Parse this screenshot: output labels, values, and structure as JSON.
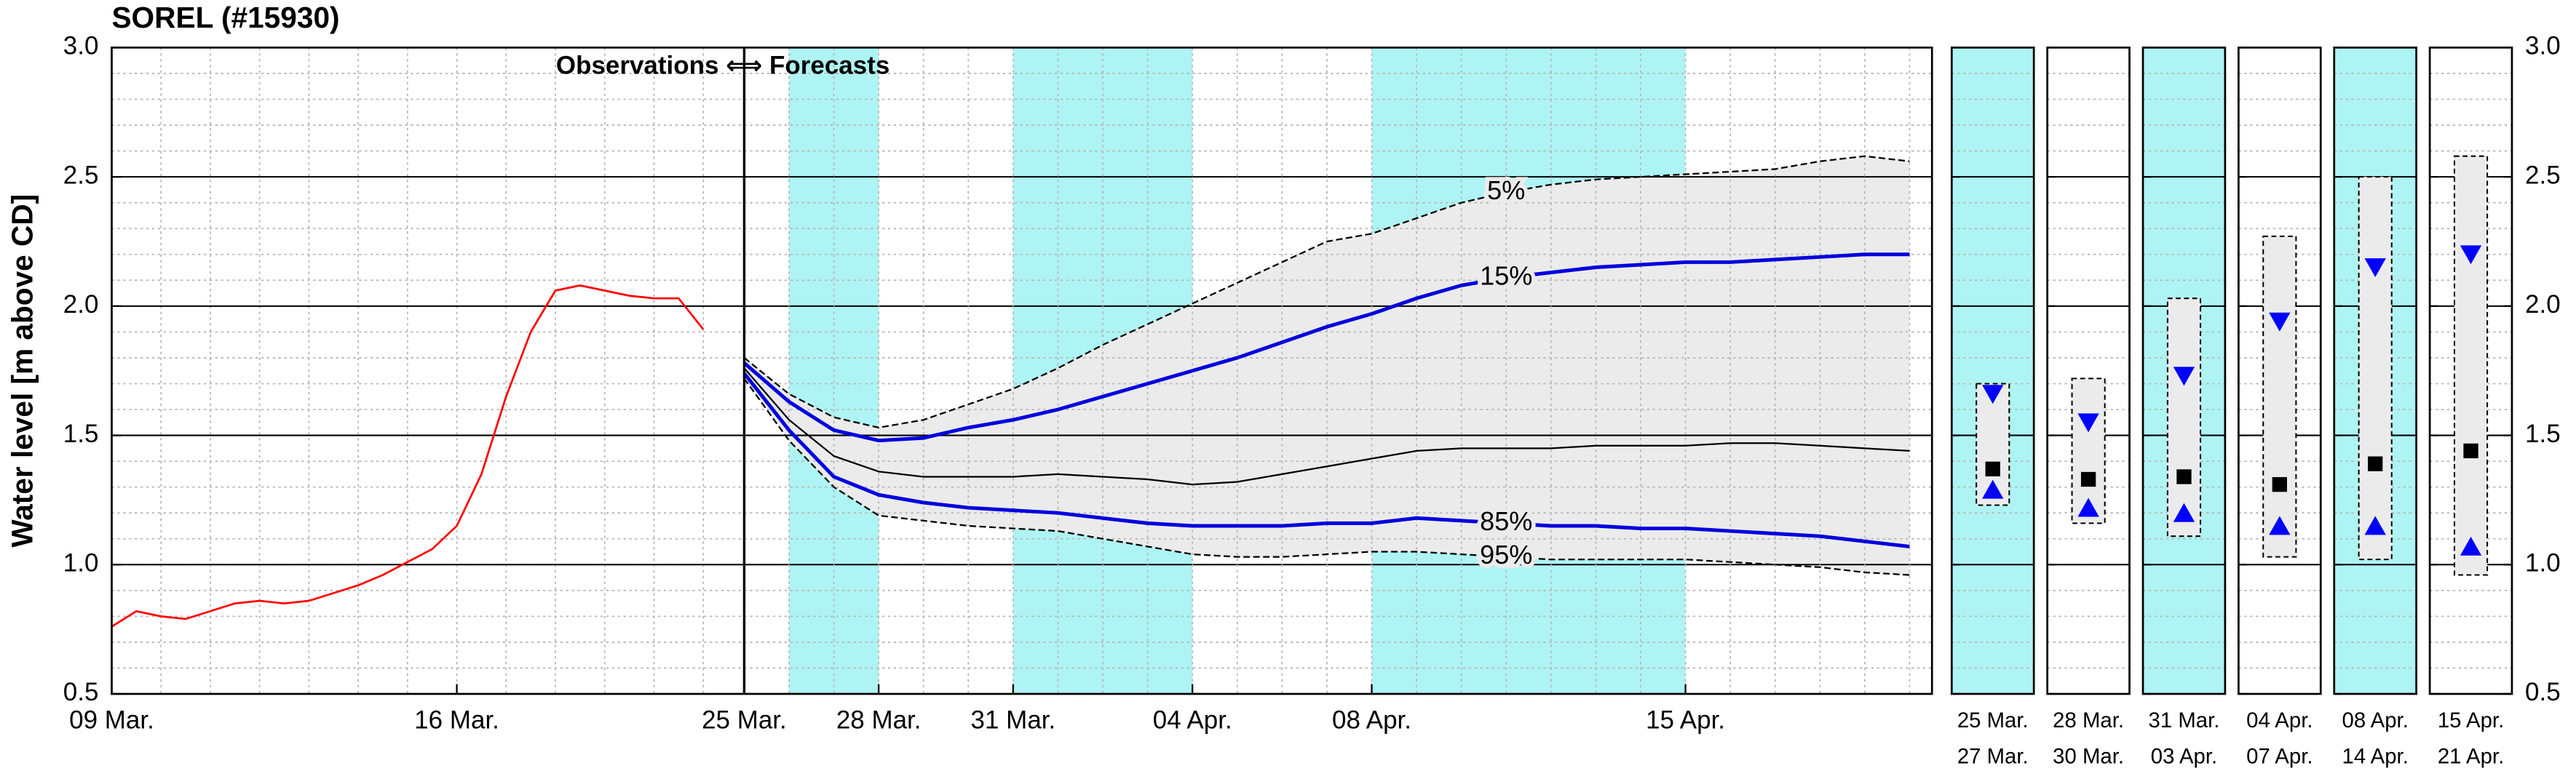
{
  "chart_data": [
    {
      "type": "line",
      "title": "SOREL (#15930)",
      "ylabel": "Water level [m above CD]",
      "xlim": [
        0,
        12.83
      ],
      "ylim": [
        0.5,
        3
      ],
      "yticks": [
        0.5,
        {
          "value": 1,
          "label": "1.0"
        },
        1.5,
        {
          "value": 2,
          "label": "2.0"
        },
        2.5,
        {
          "value": 3,
          "label": "3.0"
        }
      ],
      "xticks": [
        {
          "value": 0,
          "label": "09 Mar."
        },
        {
          "value": 7,
          "label": "16 Mar."
        }
      ],
      "grid": true,
      "minor_grid": true,
      "series": [
        {
          "color": "#ff0000",
          "x": [
            0,
            0.5,
            1,
            1.5,
            2,
            2.5,
            3,
            3.5,
            4,
            4.5,
            5,
            5.5,
            6,
            6.5,
            7,
            7.5,
            8,
            8.5,
            9,
            9.5,
            10,
            10.5,
            11,
            11.5,
            12
          ],
          "values": [
            0.76,
            0.82,
            0.8,
            0.79,
            0.82,
            0.85,
            0.86,
            0.85,
            0.86,
            0.89,
            0.92,
            0.96,
            1.01,
            1.06,
            1.15,
            1.35,
            1.65,
            1.9,
            2.06,
            2.08,
            2.06,
            2.04,
            2.03,
            2.03,
            1.91
          ]
        }
      ]
    },
    {
      "type": "band",
      "annotation": "Observations ⟺ Forecasts",
      "xlim": [
        0,
        26.5
      ],
      "xticks": [
        {
          "value": 0,
          "label": "25 Mar."
        },
        {
          "value": 3,
          "label": "28 Mar."
        },
        {
          "value": 6,
          "label": "31 Mar."
        },
        {
          "value": 10,
          "label": "04 Apr."
        },
        {
          "value": 14,
          "label": "08 Apr."
        },
        {
          "value": 21,
          "label": "15 Apr."
        }
      ],
      "shaded_ranges": [
        [
          1,
          3
        ],
        [
          6,
          10
        ],
        [
          14,
          21
        ]
      ],
      "shade_color": "#aef4f4",
      "fill_between": [
        0,
        4
      ],
      "fill_color": "#ebebeb",
      "label_at": 17,
      "x": [
        0,
        1,
        2,
        3,
        4,
        5,
        6,
        7,
        8,
        9,
        10,
        11,
        12,
        13,
        14,
        15,
        16,
        17,
        18,
        19,
        20,
        21,
        22,
        23,
        24,
        25,
        26
      ],
      "series": [
        {
          "name": "5%",
          "color": "#000000",
          "dash": true,
          "width": 1,
          "values": [
            1.8,
            1.66,
            1.57,
            1.53,
            1.56,
            1.62,
            1.68,
            1.76,
            1.85,
            1.93,
            2.01,
            2.09,
            2.17,
            2.25,
            2.28,
            2.34,
            2.4,
            2.44,
            2.47,
            2.49,
            2.5,
            2.51,
            2.52,
            2.53,
            2.56,
            2.58,
            2.56
          ]
        },
        {
          "name": "15%",
          "color": "#0000dd",
          "dash": false,
          "width": 2.2,
          "values": [
            1.78,
            1.63,
            1.52,
            1.48,
            1.49,
            1.53,
            1.56,
            1.6,
            1.65,
            1.7,
            1.75,
            1.8,
            1.86,
            1.92,
            1.97,
            2.03,
            2.08,
            2.11,
            2.13,
            2.15,
            2.16,
            2.17,
            2.17,
            2.18,
            2.19,
            2.2,
            2.2
          ]
        },
        {
          "color": "#000000",
          "dash": false,
          "width": 1,
          "values": [
            1.76,
            1.56,
            1.42,
            1.36,
            1.34,
            1.34,
            1.34,
            1.35,
            1.34,
            1.33,
            1.31,
            1.32,
            1.35,
            1.38,
            1.41,
            1.44,
            1.45,
            1.45,
            1.45,
            1.46,
            1.46,
            1.46,
            1.47,
            1.47,
            1.46,
            1.45,
            1.44
          ]
        },
        {
          "name": "85%",
          "color": "#0000dd",
          "dash": false,
          "width": 2.2,
          "values": [
            1.74,
            1.52,
            1.34,
            1.27,
            1.24,
            1.22,
            1.21,
            1.2,
            1.18,
            1.16,
            1.15,
            1.15,
            1.15,
            1.16,
            1.16,
            1.18,
            1.17,
            1.16,
            1.15,
            1.15,
            1.14,
            1.14,
            1.13,
            1.12,
            1.11,
            1.09,
            1.07
          ]
        },
        {
          "name": "95%",
          "color": "#000000",
          "dash": true,
          "width": 1,
          "values": [
            1.72,
            1.48,
            1.3,
            1.19,
            1.17,
            1.15,
            1.14,
            1.13,
            1.1,
            1.07,
            1.04,
            1.03,
            1.03,
            1.04,
            1.05,
            1.05,
            1.04,
            1.03,
            1.02,
            1.02,
            1.02,
            1.02,
            1.01,
            1.0,
            0.99,
            0.97,
            0.96
          ]
        }
      ]
    },
    {
      "type": "range",
      "ylim": [
        0.5,
        3
      ],
      "yticks": [
        0.5,
        {
          "value": 1,
          "label": "1.0"
        },
        1.5,
        {
          "value": 2,
          "label": "2.0"
        },
        2.5,
        {
          "value": 3,
          "label": "3.0"
        }
      ],
      "categories": [
        [
          "25 Mar.",
          "27 Mar."
        ],
        [
          "28 Mar.",
          "30 Mar."
        ],
        [
          "31 Mar.",
          "03 Apr."
        ],
        [
          "04 Apr.",
          "07 Apr."
        ],
        [
          "08 Apr.",
          "14 Apr."
        ],
        [
          "15 Apr.",
          "21 Apr."
        ]
      ],
      "shaded": [
        true,
        false,
        true,
        false,
        true,
        false
      ],
      "shade_color": "#aef4f4",
      "box_color": "#ebebeb",
      "marker_color": "#0000ff",
      "low": [
        1.23,
        1.16,
        1.11,
        1.03,
        1.02,
        0.96
      ],
      "high": [
        1.7,
        1.72,
        2.03,
        2.27,
        2.5,
        2.58
      ],
      "median": [
        1.37,
        1.33,
        1.34,
        1.31,
        1.39,
        1.44
      ],
      "lower": [
        1.29,
        1.22,
        1.2,
        1.15,
        1.15,
        1.07
      ],
      "upper": [
        1.66,
        1.55,
        1.73,
        1.94,
        2.15,
        2.2
      ]
    }
  ]
}
